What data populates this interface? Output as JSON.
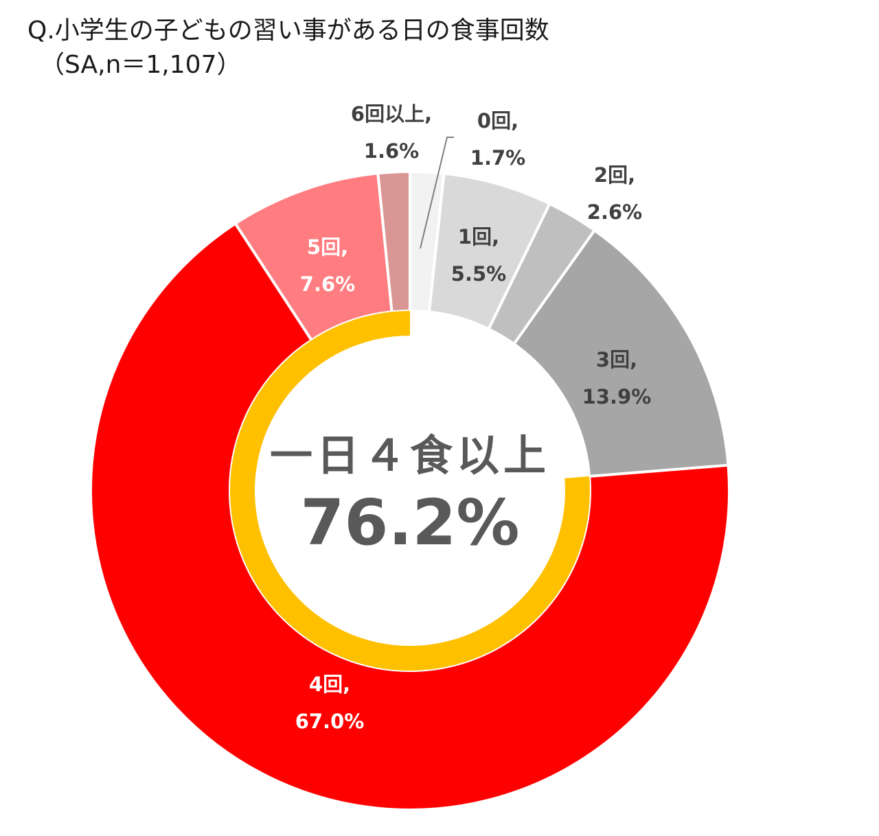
{
  "header": {
    "title": "Q.小学生の子どもの習い事がある日の食事回数",
    "subtitle": "（SA,n＝1,107）"
  },
  "center": {
    "caption": "一日４食以上",
    "value": "76.2%"
  },
  "labels": [
    {
      "name": "0回",
      "text1": "0回,",
      "text2": "1.7%"
    },
    {
      "name": "1回",
      "text1": "1回,",
      "text2": "5.5%"
    },
    {
      "name": "2回",
      "text1": "2回,",
      "text2": "2.6%"
    },
    {
      "name": "3回",
      "text1": "3回,",
      "text2": "13.9%"
    },
    {
      "name": "4回",
      "text1": "4回,",
      "text2": "67.0%"
    },
    {
      "name": "5回",
      "text1": "5回,",
      "text2": "7.6%"
    },
    {
      "name": "6回以上",
      "text1": "6回以上,",
      "text2": "1.6%"
    }
  ],
  "colors": {
    "0回": "#f2f2f2",
    "1回": "#d9d9d9",
    "2回": "#bfbfbf",
    "3回": "#a6a6a6",
    "4回": "#ff0000",
    "5回": "#ff7c80",
    "6回以上": "#d99694",
    "highlight_ring": "#ffc000",
    "label_dark": "#404040",
    "center_text": "#595959"
  },
  "chart_data": {
    "type": "pie",
    "subtype": "donut",
    "title": "Q.小学生の子どもの習い事がある日の食事回数",
    "subtitle": "（SA,n＝1,107）",
    "unit": "%",
    "start_angle": "12 o'clock, clockwise",
    "categories": [
      "0回",
      "1回",
      "2回",
      "3回",
      "4回",
      "5回",
      "6回以上"
    ],
    "values": [
      1.7,
      5.5,
      2.6,
      13.9,
      67.0,
      7.6,
      1.6
    ],
    "highlight": {
      "label": "一日４食以上",
      "value": 76.2,
      "includes": [
        "4回",
        "5回",
        "6回以上"
      ],
      "style": "inner yellow arc"
    },
    "legend": "none (data labels on slices)"
  }
}
